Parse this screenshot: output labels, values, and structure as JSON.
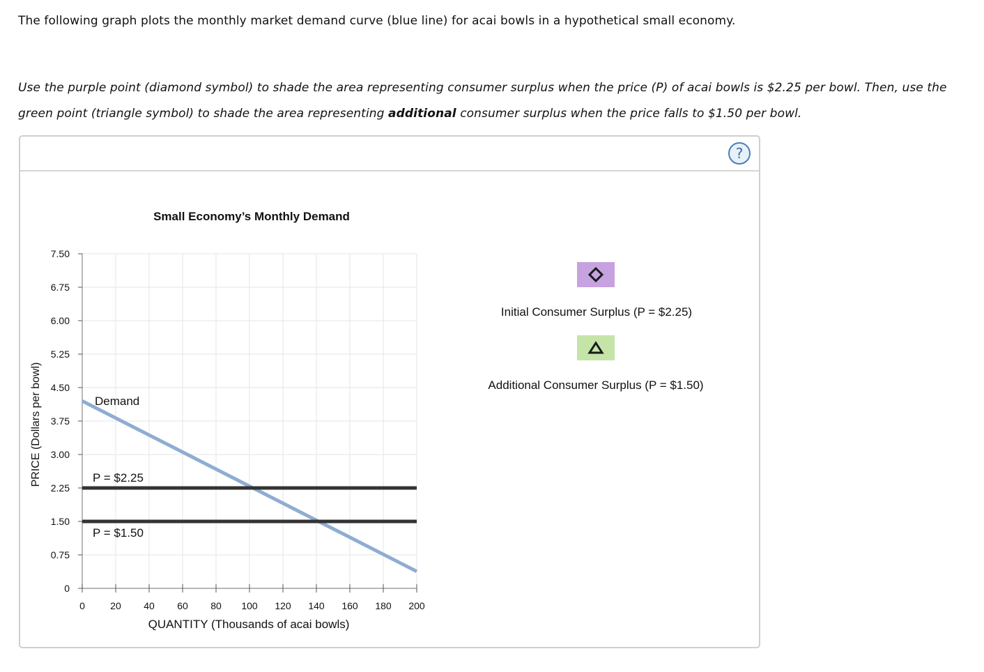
{
  "question": {
    "intro": "The following graph plots the monthly market demand curve (blue line) for acai bowls in a hypothetical small economy.",
    "instruction_part1": "Use the purple point (diamond symbol) to shade the area representing consumer surplus when the price (P) of acai bowls is $2.25 per bowl. Then, use the green point (triangle symbol) to shade the area representing ",
    "instruction_bold": "additional",
    "instruction_part2": " consumer surplus when the price falls to $1.50 per bowl."
  },
  "panel": {
    "help_icon": "question-mark-icon",
    "help_label": "?"
  },
  "chart_data": {
    "type": "line",
    "title": "Small Economy’s Monthly Demand",
    "xlabel": "QUANTITY (Thousands of acai bowls)",
    "ylabel": "PRICE (Dollars per bowl)",
    "xlim": [
      0,
      200
    ],
    "ylim": [
      0,
      7.5
    ],
    "xticks": [
      0,
      20,
      40,
      60,
      80,
      100,
      120,
      140,
      160,
      180,
      200
    ],
    "yticks": [
      "0",
      "0.75",
      "1.50",
      "2.25",
      "3.00",
      "3.75",
      "4.50",
      "5.25",
      "6.00",
      "6.75",
      "7.50"
    ],
    "grid": true,
    "series": [
      {
        "name": "Demand",
        "color": "#8fadd2",
        "x": [
          0,
          200
        ],
        "y": [
          4.2,
          0.38
        ]
      }
    ],
    "price_lines": [
      {
        "label": "P = $2.25",
        "y": 2.25,
        "color": "#333333"
      },
      {
        "label": "P = $1.50",
        "y": 1.5,
        "color": "#333333"
      }
    ]
  },
  "tools": [
    {
      "shape": "diamond",
      "icon": "diamond-icon",
      "color": "#c7a2e0",
      "label": "Initial Consumer Surplus (P = $2.25)"
    },
    {
      "shape": "triangle",
      "icon": "triangle-icon",
      "color": "#c4e4a8",
      "label": "Additional Consumer Surplus (P = $1.50)"
    }
  ]
}
